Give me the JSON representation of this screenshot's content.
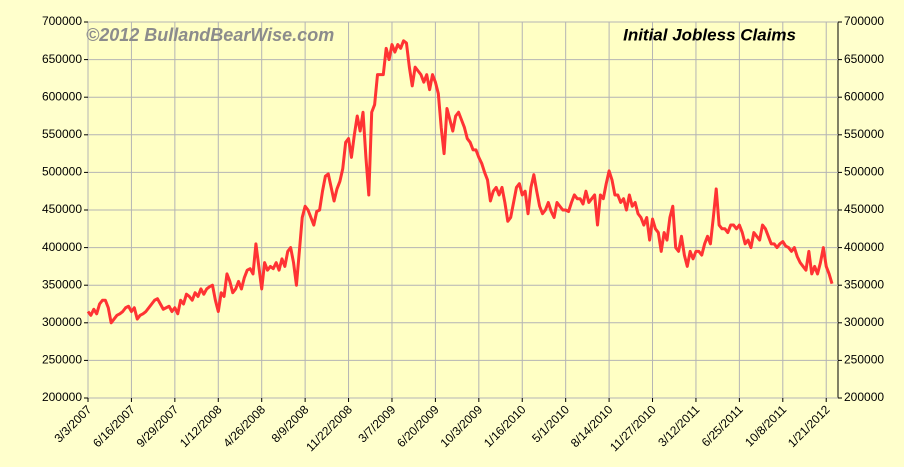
{
  "chart_data": {
    "type": "line",
    "title": "Initial Jobless Claims",
    "annotation": "©2012 BullandBearWise.com",
    "color": "#ff3333",
    "grid": true,
    "ylim": [
      200000,
      700000
    ],
    "yticks": [
      200000,
      250000,
      300000,
      350000,
      400000,
      450000,
      500000,
      550000,
      600000,
      650000,
      700000
    ],
    "y2lim": [
      200000,
      700000
    ],
    "y2ticks": [
      200000,
      250000,
      300000,
      350000,
      400000,
      450000,
      500000,
      550000,
      600000,
      650000,
      700000
    ],
    "categories": [
      "3/3/2007",
      null,
      null,
      null,
      null,
      null,
      null,
      null,
      null,
      null,
      null,
      null,
      null,
      null,
      null,
      "6/16/2007",
      null,
      null,
      null,
      null,
      null,
      null,
      null,
      null,
      null,
      null,
      null,
      null,
      null,
      null,
      "9/29/2007",
      null,
      null,
      null,
      null,
      null,
      null,
      null,
      null,
      null,
      null,
      null,
      null,
      null,
      null,
      "1/12/2008",
      null,
      null,
      null,
      null,
      null,
      null,
      null,
      null,
      null,
      null,
      null,
      null,
      null,
      null,
      "4/26/2008",
      null,
      null,
      null,
      null,
      null,
      null,
      null,
      null,
      null,
      null,
      null,
      null,
      null,
      null,
      "8/9/2008",
      null,
      null,
      null,
      null,
      null,
      null,
      null,
      null,
      null,
      null,
      null,
      null,
      null,
      null,
      "11/22/2008",
      null,
      null,
      null,
      null,
      null,
      null,
      null,
      null,
      null,
      null,
      null,
      null,
      null,
      null,
      "3/7/2009",
      null,
      null,
      null,
      null,
      null,
      null,
      null,
      null,
      null,
      null,
      null,
      null,
      null,
      null,
      "6/20/2009",
      null,
      null,
      null,
      null,
      null,
      null,
      null,
      null,
      null,
      null,
      null,
      null,
      null,
      null,
      "10/3/2009",
      null,
      null,
      null,
      null,
      null,
      null,
      null,
      null,
      null,
      null,
      null,
      null,
      null,
      null,
      "1/16/2010",
      null,
      null,
      null,
      null,
      null,
      null,
      null,
      null,
      null,
      null,
      null,
      null,
      null,
      null,
      "5/1/2010",
      null,
      null,
      null,
      null,
      null,
      null,
      null,
      null,
      null,
      null,
      null,
      null,
      null,
      null,
      "8/14/2010",
      null,
      null,
      null,
      null,
      null,
      null,
      null,
      null,
      null,
      null,
      null,
      null,
      null,
      null,
      "11/27/2010",
      null,
      null,
      null,
      null,
      null,
      null,
      null,
      null,
      null,
      null,
      null,
      null,
      null,
      null,
      "3/12/2011",
      null,
      null,
      null,
      null,
      null,
      null,
      null,
      null,
      null,
      null,
      null,
      null,
      null,
      null,
      "6/25/2011",
      null,
      null,
      null,
      null,
      null,
      null,
      null,
      null,
      null,
      null,
      null,
      null,
      null,
      null,
      "10/8/2011",
      null,
      null,
      null,
      null,
      null,
      null,
      null,
      null,
      null,
      null,
      null,
      null,
      null,
      null,
      "1/21/2012",
      null,
      null
    ],
    "values": [
      315000,
      310000,
      318000,
      312000,
      325000,
      330000,
      330000,
      320000,
      300000,
      305000,
      310000,
      312000,
      315000,
      320000,
      322000,
      315000,
      320000,
      305000,
      310000,
      312000,
      315000,
      320000,
      325000,
      330000,
      332000,
      325000,
      318000,
      320000,
      322000,
      315000,
      320000,
      312000,
      330000,
      325000,
      338000,
      335000,
      330000,
      340000,
      335000,
      345000,
      338000,
      345000,
      348000,
      350000,
      330000,
      315000,
      340000,
      335000,
      365000,
      355000,
      340000,
      345000,
      355000,
      345000,
      360000,
      370000,
      372000,
      365000,
      405000,
      375000,
      345000,
      380000,
      370000,
      375000,
      372000,
      380000,
      370000,
      385000,
      375000,
      395000,
      400000,
      380000,
      350000,
      395000,
      440000,
      455000,
      450000,
      440000,
      430000,
      448000,
      450000,
      475000,
      495000,
      498000,
      480000,
      462000,
      478000,
      488000,
      505000,
      540000,
      545000,
      520000,
      550000,
      575000,
      555000,
      580000,
      520000,
      470000,
      580000,
      590000,
      630000,
      630000,
      630000,
      665000,
      650000,
      670000,
      660000,
      670000,
      665000,
      675000,
      672000,
      640000,
      615000,
      640000,
      635000,
      630000,
      620000,
      630000,
      610000,
      630000,
      620000,
      605000,
      560000,
      525000,
      585000,
      570000,
      555000,
      575000,
      580000,
      570000,
      560000,
      545000,
      540000,
      530000,
      530000,
      520000,
      512000,
      500000,
      490000,
      462000,
      475000,
      480000,
      470000,
      480000,
      460000,
      435000,
      440000,
      460000,
      480000,
      485000,
      470000,
      475000,
      445000,
      480000,
      497000,
      475000,
      455000,
      445000,
      450000,
      460000,
      448000,
      440000,
      460000,
      455000,
      450000,
      450000,
      448000,
      460000,
      470000,
      465000,
      465000,
      458000,
      475000,
      460000,
      465000,
      470000,
      430000,
      470000,
      465000,
      485000,
      502000,
      490000,
      470000,
      470000,
      460000,
      465000,
      450000,
      470000,
      455000,
      460000,
      445000,
      440000,
      430000,
      440000,
      410000,
      438000,
      425000,
      420000,
      395000,
      420000,
      410000,
      440000,
      455000,
      400000,
      395000,
      415000,
      390000,
      375000,
      395000,
      385000,
      395000,
      395000,
      390000,
      405000,
      415000,
      405000,
      440000,
      478000,
      430000,
      425000,
      425000,
      420000,
      430000,
      430000,
      425000,
      430000,
      420000,
      405000,
      410000,
      400000,
      420000,
      415000,
      410000,
      430000,
      425000,
      415000,
      405000,
      405000,
      400000,
      405000,
      408000,
      402000,
      400000,
      395000,
      400000,
      388000,
      380000,
      375000,
      370000,
      395000,
      365000,
      375000,
      365000,
      380000,
      400000,
      375000,
      365000,
      352000
    ]
  }
}
